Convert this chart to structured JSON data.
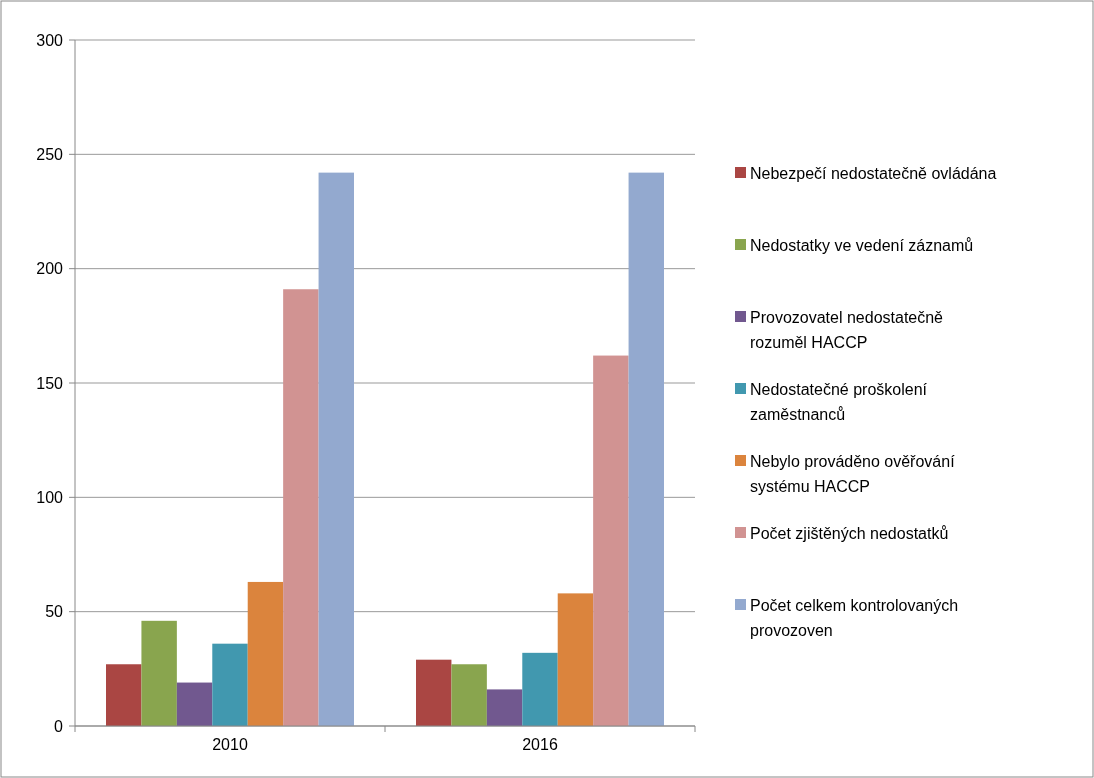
{
  "chart_data": {
    "type": "bar",
    "categories": [
      "2010",
      "2016"
    ],
    "series": [
      {
        "name": "Nebezpečí nedostatečně ovládána",
        "color": "#aa4643",
        "values": [
          27,
          29
        ]
      },
      {
        "name": "Nedostatky ve vedení záznamů",
        "color": "#89a54e",
        "values": [
          46,
          27
        ]
      },
      {
        "name": "Provozovatel nedostatečně rozuměl HACCP",
        "color": "#71588f",
        "values": [
          19,
          16
        ]
      },
      {
        "name": "Nedostatečné proškolení zaměstnanců",
        "color": "#4198af",
        "values": [
          36,
          32
        ]
      },
      {
        "name": "Nebylo prováděno ověřování systému HACCP",
        "color": "#db843d",
        "values": [
          63,
          58
        ]
      },
      {
        "name": "Počet zjištěných nedostatků",
        "color": "#d19392",
        "values": [
          191,
          162
        ]
      },
      {
        "name": "Počet celkem kontrolovaných provozoven",
        "color": "#93a9cf",
        "values": [
          242,
          242
        ]
      }
    ],
    "ylim": [
      0,
      300
    ],
    "yticks": [
      0,
      50,
      100,
      150,
      200,
      250,
      300
    ],
    "grid": "y",
    "legend": "right"
  }
}
